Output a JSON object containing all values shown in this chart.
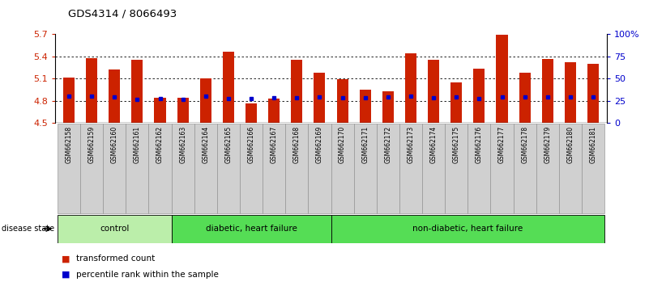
{
  "title": "GDS4314 / 8066493",
  "samples": [
    "GSM662158",
    "GSM662159",
    "GSM662160",
    "GSM662161",
    "GSM662162",
    "GSM662163",
    "GSM662164",
    "GSM662165",
    "GSM662166",
    "GSM662167",
    "GSM662168",
    "GSM662169",
    "GSM662170",
    "GSM662171",
    "GSM662172",
    "GSM662173",
    "GSM662174",
    "GSM662175",
    "GSM662176",
    "GSM662177",
    "GSM662178",
    "GSM662179",
    "GSM662180",
    "GSM662181"
  ],
  "bar_values": [
    5.12,
    5.38,
    5.22,
    5.36,
    4.84,
    4.84,
    5.1,
    5.46,
    4.76,
    4.83,
    5.35,
    5.18,
    5.09,
    4.95,
    4.93,
    5.44,
    5.35,
    5.05,
    5.24,
    5.69,
    5.18,
    5.37,
    5.32,
    5.3
  ],
  "percentile_values": [
    4.862,
    4.862,
    4.85,
    4.82,
    4.83,
    4.82,
    4.862,
    4.83,
    4.83,
    4.84,
    4.84,
    4.85,
    4.84,
    4.84,
    4.85,
    4.862,
    4.84,
    4.85,
    4.83,
    4.85,
    4.85,
    4.85,
    4.85,
    4.85
  ],
  "bar_color": "#cc2200",
  "percentile_color": "#0000cc",
  "ymin": 4.5,
  "ymax": 5.7,
  "yticks": [
    4.5,
    4.8,
    5.1,
    5.4,
    5.7
  ],
  "right_ytick_percents": [
    0,
    25,
    50,
    75,
    100
  ],
  "right_ytick_labels": [
    "0",
    "25",
    "50",
    "75",
    "100%"
  ],
  "groups": [
    {
      "label": "control",
      "start": 0,
      "end": 5,
      "color": "#bbeeaa"
    },
    {
      "label": "diabetic, heart failure",
      "start": 5,
      "end": 12,
      "color": "#55dd55"
    },
    {
      "label": "non-diabetic, heart failure",
      "start": 12,
      "end": 24,
      "color": "#55dd55"
    }
  ],
  "disease_state_label": "disease state",
  "legend": [
    {
      "label": "transformed count",
      "color": "#cc2200"
    },
    {
      "label": "percentile rank within the sample",
      "color": "#0000cc"
    }
  ],
  "bar_width": 0.5,
  "tick_color_left": "#cc2200",
  "tick_color_right": "#0000cc"
}
